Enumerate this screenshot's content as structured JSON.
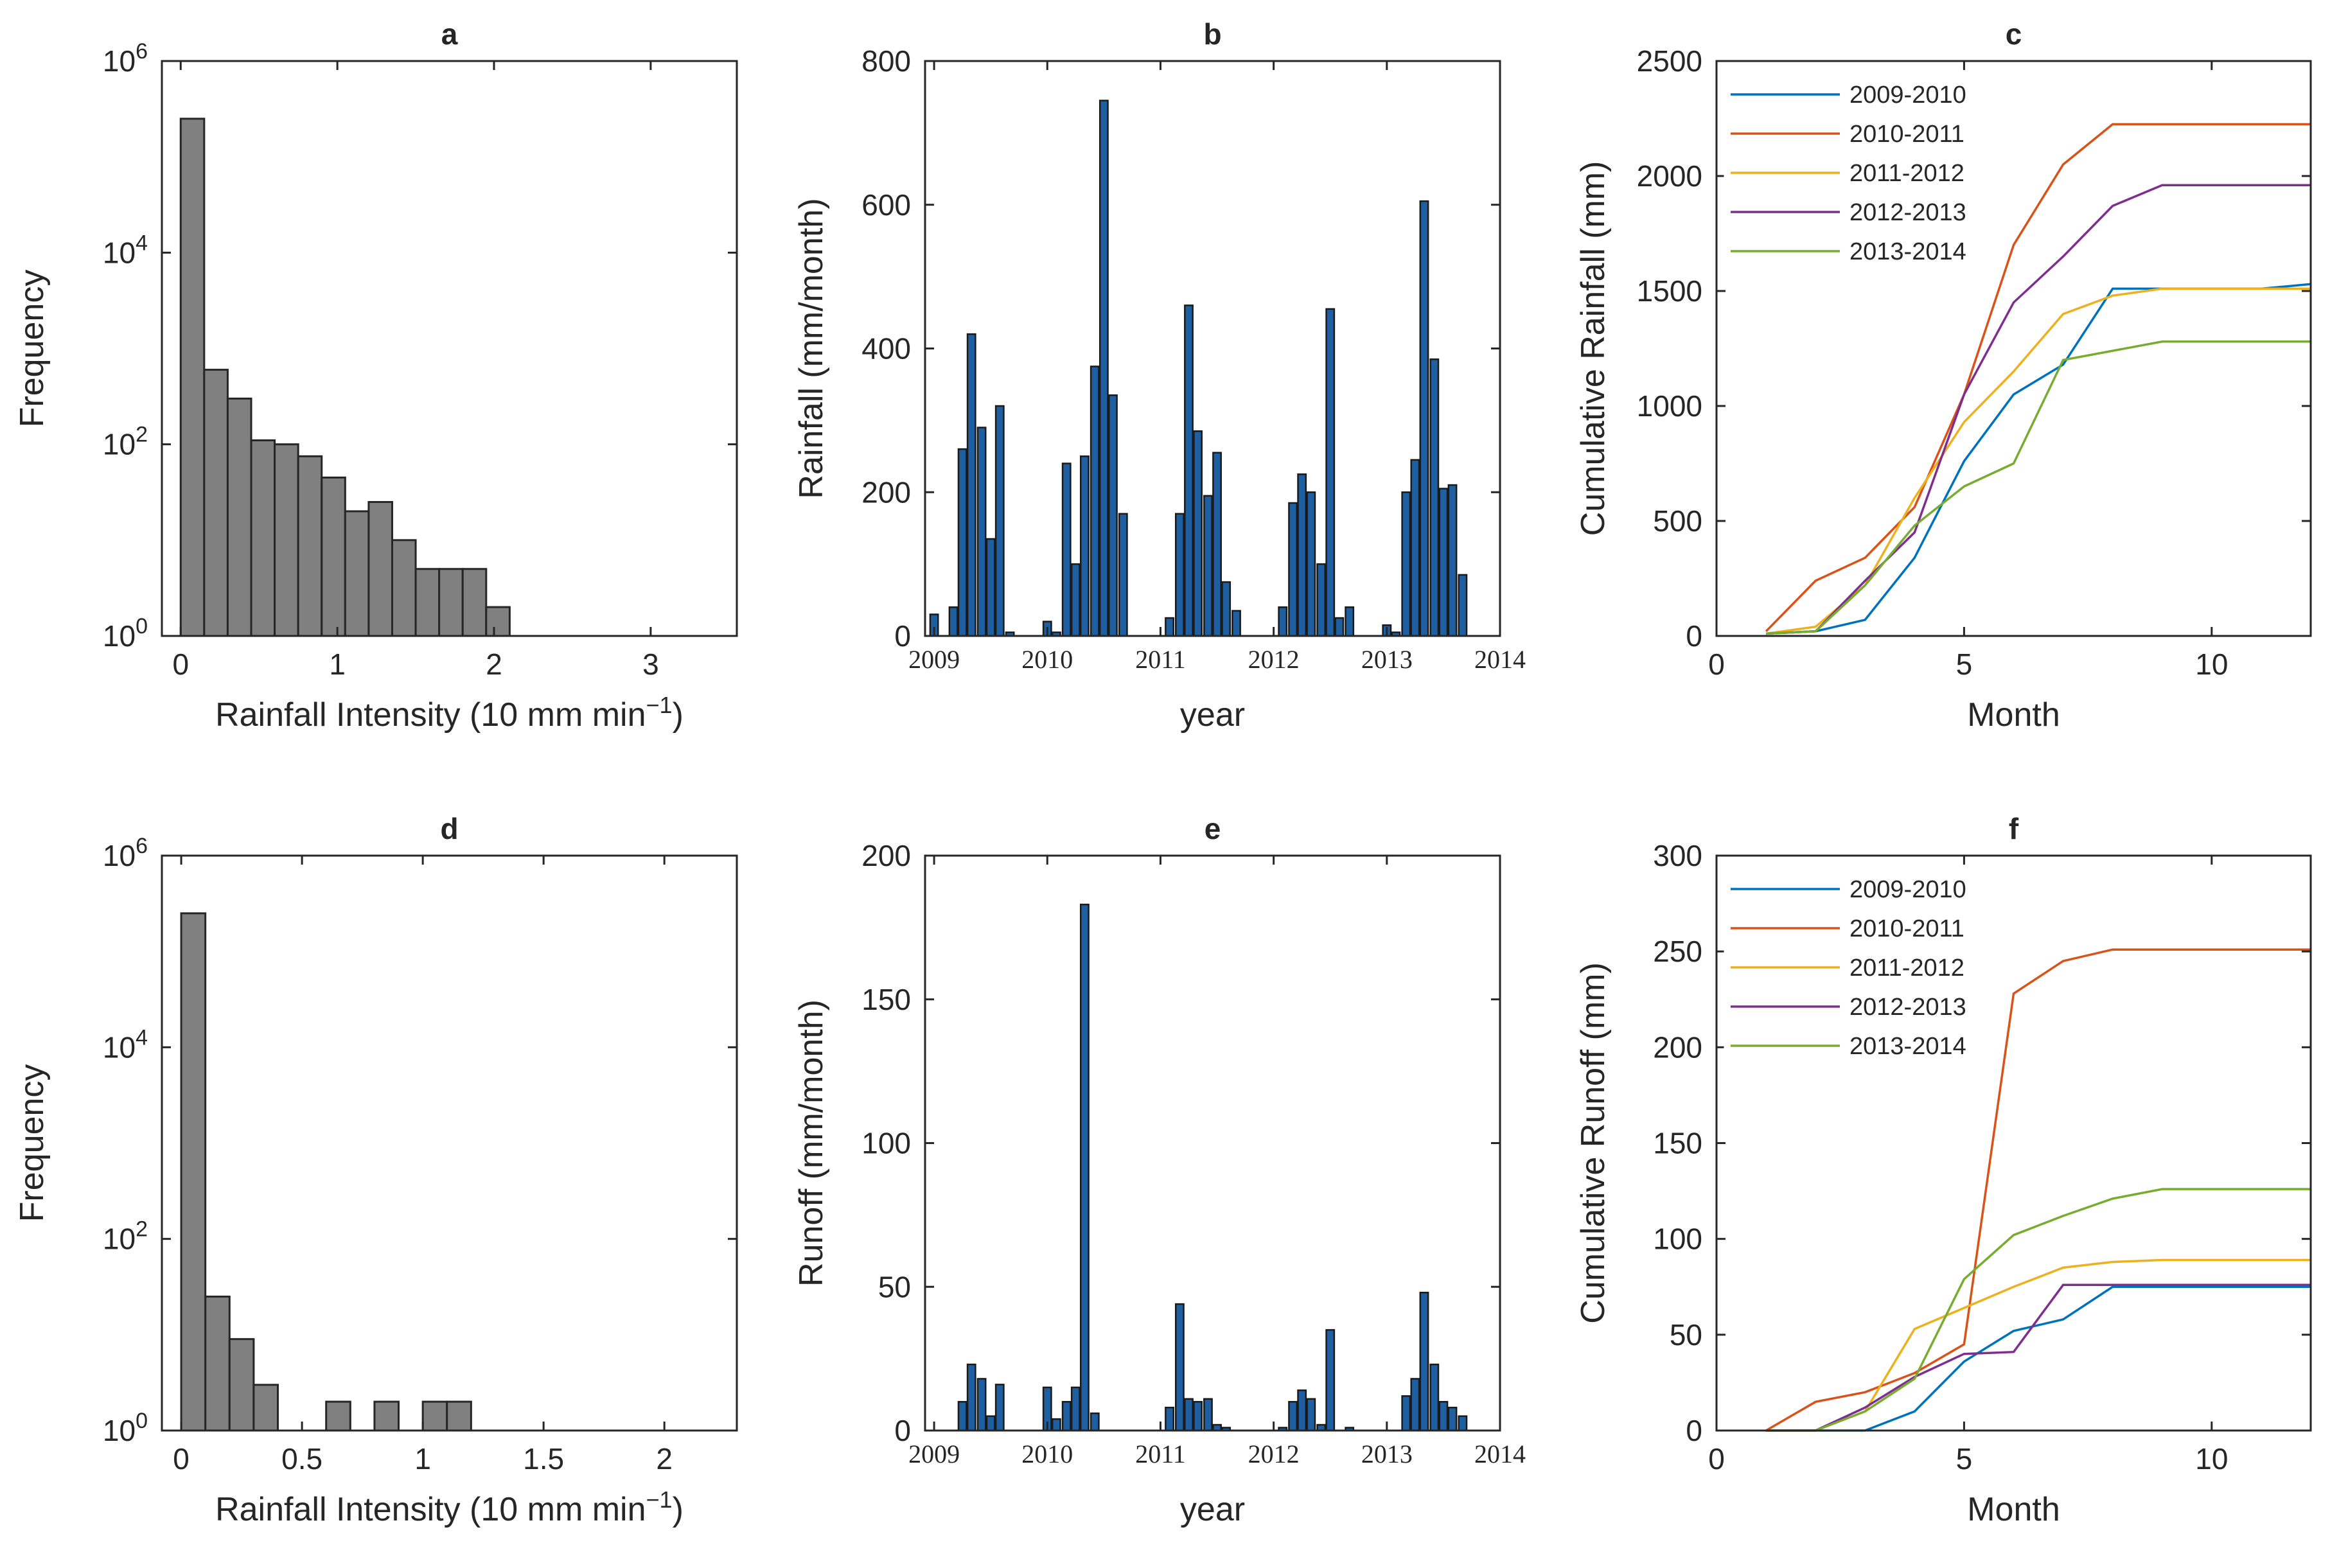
{
  "chart_data": [
    {
      "panel": "a",
      "type": "bar",
      "subtype": "histogram",
      "title": "a",
      "xlabel": "Rainfall Intensity (10 mm min",
      "xlabel_sup": "−1",
      "xlabel_close": ")",
      "ylabel": "Frequency",
      "yscale": "log",
      "ylim": [
        1,
        1000000
      ],
      "xlim": [
        -0.12,
        3.55
      ],
      "bin_width": 0.15,
      "bin_starts": [
        0,
        0.15,
        0.3,
        0.45,
        0.6,
        0.75,
        0.9,
        1.05,
        1.2,
        1.35,
        1.5,
        1.65,
        1.8,
        1.95
      ],
      "values": [
        250000,
        600,
        300,
        110,
        100,
        75,
        45,
        20,
        25,
        10,
        5,
        5,
        5,
        2
      ],
      "xticks": [
        0,
        1,
        2,
        3
      ],
      "xtick_labels": [
        "0",
        "1",
        "2",
        "3"
      ],
      "yticks": [
        1,
        100,
        10000,
        1000000
      ],
      "ytick_base": "10",
      "ytick_exps": [
        "0",
        "2",
        "4",
        "6"
      ],
      "bar_color": "#808080",
      "edge_color": "#262626"
    },
    {
      "panel": "b",
      "type": "bar",
      "title": "b",
      "xlabel": "year",
      "ylabel": "Rainfall (mm/month)",
      "ylim": [
        0,
        800
      ],
      "xlim": [
        2008.92,
        2014.0
      ],
      "yticks": [
        0,
        200,
        400,
        600,
        800
      ],
      "ytick_labels": [
        "0",
        "200",
        "400",
        "600",
        "800"
      ],
      "xticks": [
        2009,
        2010,
        2011,
        2012,
        2013,
        2014
      ],
      "xtick_labels": [
        "2009",
        "2010",
        "2011",
        "2012",
        "2013",
        "2014"
      ],
      "x": [
        2009.0,
        2009.08,
        2009.17,
        2009.25,
        2009.33,
        2009.42,
        2009.5,
        2009.58,
        2009.67,
        2009.75,
        2009.83,
        2009.92,
        2010.0,
        2010.08,
        2010.17,
        2010.25,
        2010.33,
        2010.42,
        2010.5,
        2010.58,
        2010.67,
        2010.75,
        2010.83,
        2010.92,
        2011.0,
        2011.08,
        2011.17,
        2011.25,
        2011.33,
        2011.42,
        2011.5,
        2011.58,
        2011.67,
        2011.75,
        2011.83,
        2011.92,
        2012.0,
        2012.08,
        2012.17,
        2012.25,
        2012.33,
        2012.42,
        2012.5,
        2012.58,
        2012.67,
        2012.75,
        2012.83,
        2012.92,
        2013.0,
        2013.08,
        2013.17,
        2013.25,
        2013.33,
        2013.42,
        2013.5,
        2013.58,
        2013.67,
        2013.75,
        2013.83,
        2013.92
      ],
      "values": [
        30,
        0,
        40,
        260,
        420,
        290,
        135,
        320,
        5,
        0,
        0,
        0,
        20,
        5,
        240,
        100,
        250,
        375,
        745,
        335,
        170,
        0,
        0,
        0,
        0,
        25,
        170,
        460,
        285,
        195,
        255,
        75,
        35,
        0,
        0,
        0,
        0,
        40,
        185,
        225,
        200,
        100,
        455,
        25,
        40,
        0,
        0,
        0,
        15,
        5,
        200,
        245,
        605,
        385,
        205,
        210,
        85,
        0,
        0,
        0
      ],
      "bar_width": 0.07,
      "bar_color": "#1f5f9f",
      "edge_color": "#1a1a1a"
    },
    {
      "panel": "c",
      "type": "line",
      "title": "c",
      "xlabel": "Month",
      "ylabel": "Cumulative Rainfall (mm)",
      "xlim": [
        0,
        12
      ],
      "ylim": [
        0,
        2500
      ],
      "xticks": [
        0,
        5,
        10
      ],
      "xtick_labels": [
        "0",
        "5",
        "10"
      ],
      "yticks": [
        0,
        500,
        1000,
        1500,
        2000,
        2500
      ],
      "ytick_labels": [
        "0",
        "500",
        "1000",
        "1500",
        "2000",
        "2500"
      ],
      "legend_position": "top-left",
      "x": [
        1,
        2,
        3,
        4,
        5,
        6,
        7,
        8,
        9,
        10,
        11,
        12
      ],
      "series": [
        {
          "name": "2009-2010",
          "color": "#0072BD",
          "values": [
            10,
            20,
            70,
            340,
            760,
            1050,
            1180,
            1510,
            1510,
            1510,
            1510,
            1530
          ]
        },
        {
          "name": "2010-2011",
          "color": "#D95319",
          "values": [
            20,
            240,
            340,
            560,
            1050,
            1700,
            2050,
            2225,
            2225,
            2225,
            2225,
            2225
          ]
        },
        {
          "name": "2011-2012",
          "color": "#EDB120",
          "values": [
            10,
            40,
            220,
            600,
            930,
            1150,
            1400,
            1480,
            1510,
            1510,
            1510,
            1510
          ]
        },
        {
          "name": "2012-2013",
          "color": "#7E2F8E",
          "values": [
            10,
            20,
            240,
            450,
            1050,
            1450,
            1650,
            1870,
            1960,
            1960,
            1960,
            1960
          ]
        },
        {
          "name": "2013-2014",
          "color": "#77AC30",
          "values": [
            10,
            20,
            220,
            480,
            650,
            750,
            1200,
            1240,
            1280,
            1280,
            1280,
            1280
          ]
        }
      ]
    },
    {
      "panel": "d",
      "type": "bar",
      "subtype": "histogram",
      "title": "d",
      "xlabel": "Rainfall Intensity (10 mm min",
      "xlabel_sup": "−1",
      "xlabel_close": ")",
      "ylabel": "Frequency",
      "yscale": "log",
      "ylim": [
        1,
        1000000
      ],
      "xlim": [
        -0.08,
        2.3
      ],
      "bin_width": 0.1,
      "bin_starts": [
        0,
        0.1,
        0.2,
        0.3,
        0.6,
        0.8,
        1.0,
        1.1
      ],
      "values": [
        250000,
        25,
        9,
        3,
        2,
        2,
        2,
        2
      ],
      "xticks": [
        0,
        0.5,
        1,
        1.5,
        2
      ],
      "xtick_labels": [
        "0",
        "0.5",
        "1",
        "1.5",
        "2"
      ],
      "yticks": [
        1,
        100,
        10000,
        1000000
      ],
      "ytick_base": "10",
      "ytick_exps": [
        "0",
        "2",
        "4",
        "6"
      ],
      "bar_color": "#808080",
      "edge_color": "#262626"
    },
    {
      "panel": "e",
      "type": "bar",
      "title": "e",
      "xlabel": "year",
      "ylabel": "Runoff (mm/month)",
      "ylim": [
        0,
        200
      ],
      "xlim": [
        2008.92,
        2014.0
      ],
      "yticks": [
        0,
        50,
        100,
        150,
        200
      ],
      "ytick_labels": [
        "0",
        "50",
        "100",
        "150",
        "200"
      ],
      "xticks": [
        2009,
        2010,
        2011,
        2012,
        2013,
        2014
      ],
      "xtick_labels": [
        "2009",
        "2010",
        "2011",
        "2012",
        "2013",
        "2014"
      ],
      "x": [
        2009.0,
        2009.08,
        2009.17,
        2009.25,
        2009.33,
        2009.42,
        2009.5,
        2009.58,
        2009.67,
        2009.75,
        2009.83,
        2009.92,
        2010.0,
        2010.08,
        2010.17,
        2010.25,
        2010.33,
        2010.42,
        2010.5,
        2010.58,
        2010.67,
        2010.75,
        2010.83,
        2010.92,
        2011.0,
        2011.08,
        2011.17,
        2011.25,
        2011.33,
        2011.42,
        2011.5,
        2011.58,
        2011.67,
        2011.75,
        2011.83,
        2011.92,
        2012.0,
        2012.08,
        2012.17,
        2012.25,
        2012.33,
        2012.42,
        2012.5,
        2012.58,
        2012.67,
        2012.75,
        2012.83,
        2012.92,
        2013.0,
        2013.08,
        2013.17,
        2013.25,
        2013.33,
        2013.42,
        2013.5,
        2013.58,
        2013.67,
        2013.75,
        2013.83,
        2013.92
      ],
      "values": [
        0,
        0,
        0,
        10,
        23,
        18,
        5,
        16,
        0,
        0,
        0,
        0,
        15,
        4,
        10,
        15,
        183,
        6,
        0,
        0,
        0,
        0,
        0,
        0,
        0,
        8,
        44,
        11,
        10,
        11,
        2,
        1,
        0,
        0,
        0,
        0,
        0,
        1,
        10,
        14,
        11,
        2,
        35,
        0,
        1,
        0,
        0,
        0,
        0,
        0,
        12,
        18,
        48,
        23,
        10,
        8,
        5,
        0,
        0,
        0
      ],
      "bar_width": 0.07,
      "bar_color": "#1f5f9f",
      "edge_color": "#1a1a1a"
    },
    {
      "panel": "f",
      "type": "line",
      "title": "f",
      "xlabel": "Month",
      "ylabel": "Cumulative Runoff (mm)",
      "xlim": [
        0,
        12
      ],
      "ylim": [
        0,
        300
      ],
      "xticks": [
        0,
        5,
        10
      ],
      "xtick_labels": [
        "0",
        "5",
        "10"
      ],
      "yticks": [
        0,
        50,
        100,
        150,
        200,
        250,
        300
      ],
      "ytick_labels": [
        "0",
        "50",
        "100",
        "150",
        "200",
        "250",
        "300"
      ],
      "legend_position": "top-left",
      "x": [
        1,
        2,
        3,
        4,
        5,
        6,
        7,
        8,
        9,
        10,
        11,
        12
      ],
      "series": [
        {
          "name": "2009-2010",
          "color": "#0072BD",
          "values": [
            0,
            0,
            0,
            10,
            36,
            52,
            58,
            75,
            75,
            75,
            75,
            75
          ]
        },
        {
          "name": "2010-2011",
          "color": "#D95319",
          "values": [
            0,
            15,
            20,
            30,
            45,
            228,
            245,
            251,
            251,
            251,
            251,
            251
          ]
        },
        {
          "name": "2011-2012",
          "color": "#EDB120",
          "values": [
            0,
            0,
            10,
            53,
            64,
            75,
            85,
            88,
            89,
            89,
            89,
            89
          ]
        },
        {
          "name": "2012-2013",
          "color": "#7E2F8E",
          "values": [
            0,
            0,
            12,
            28,
            40,
            41,
            76,
            76,
            76,
            76,
            76,
            76
          ]
        },
        {
          "name": "2013-2014",
          "color": "#77AC30",
          "values": [
            0,
            0,
            10,
            27,
            79,
            102,
            112,
            121,
            126,
            126,
            126,
            126
          ]
        }
      ]
    }
  ]
}
